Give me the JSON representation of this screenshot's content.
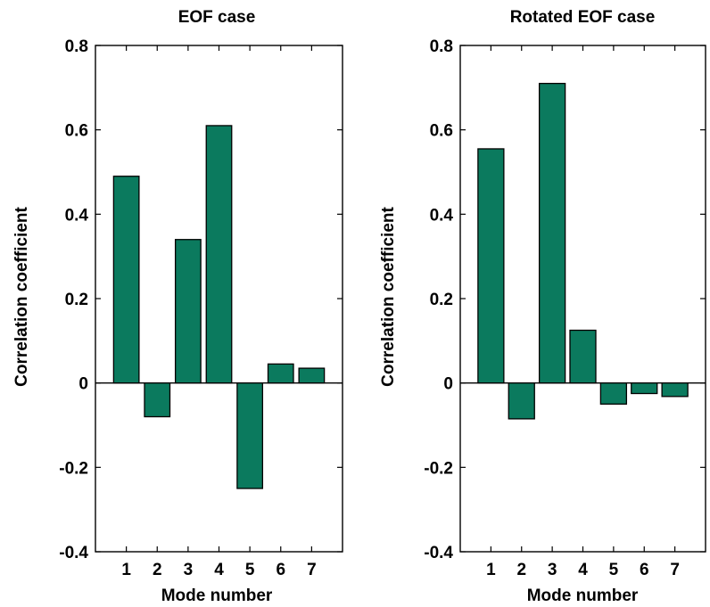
{
  "colors": {
    "bar_fill": "#0b7a5e",
    "axis": "#000000",
    "background": "#ffffff"
  },
  "chart_data": [
    {
      "type": "bar",
      "title": "EOF case",
      "xlabel": "Mode number",
      "ylabel": "Correlation coefficient",
      "categories": [
        "1",
        "2",
        "3",
        "4",
        "5",
        "6",
        "7"
      ],
      "values": [
        0.49,
        -0.08,
        0.34,
        0.61,
        -0.25,
        0.045,
        0.035
      ],
      "ylim": [
        -0.4,
        0.8
      ],
      "yticks": [
        -0.4,
        -0.2,
        0,
        0.2,
        0.4,
        0.6,
        0.8
      ],
      "ytick_labels": [
        "-0.4",
        "-0.2",
        "0",
        "0.2",
        "0.4",
        "0.6",
        "0.8"
      ],
      "grid": false,
      "legend": "none"
    },
    {
      "type": "bar",
      "title": "Rotated EOF case",
      "xlabel": "Mode number",
      "ylabel": "Correlation coefficient",
      "categories": [
        "1",
        "2",
        "3",
        "4",
        "5",
        "6",
        "7"
      ],
      "values": [
        0.555,
        -0.085,
        0.71,
        0.125,
        -0.05,
        -0.025,
        -0.032
      ],
      "ylim": [
        -0.4,
        0.8
      ],
      "yticks": [
        -0.4,
        -0.2,
        0,
        0.2,
        0.4,
        0.6,
        0.8
      ],
      "ytick_labels": [
        "-0.4",
        "-0.2",
        "0",
        "0.2",
        "0.4",
        "0.6",
        "0.8"
      ],
      "grid": false,
      "legend": "none"
    }
  ]
}
